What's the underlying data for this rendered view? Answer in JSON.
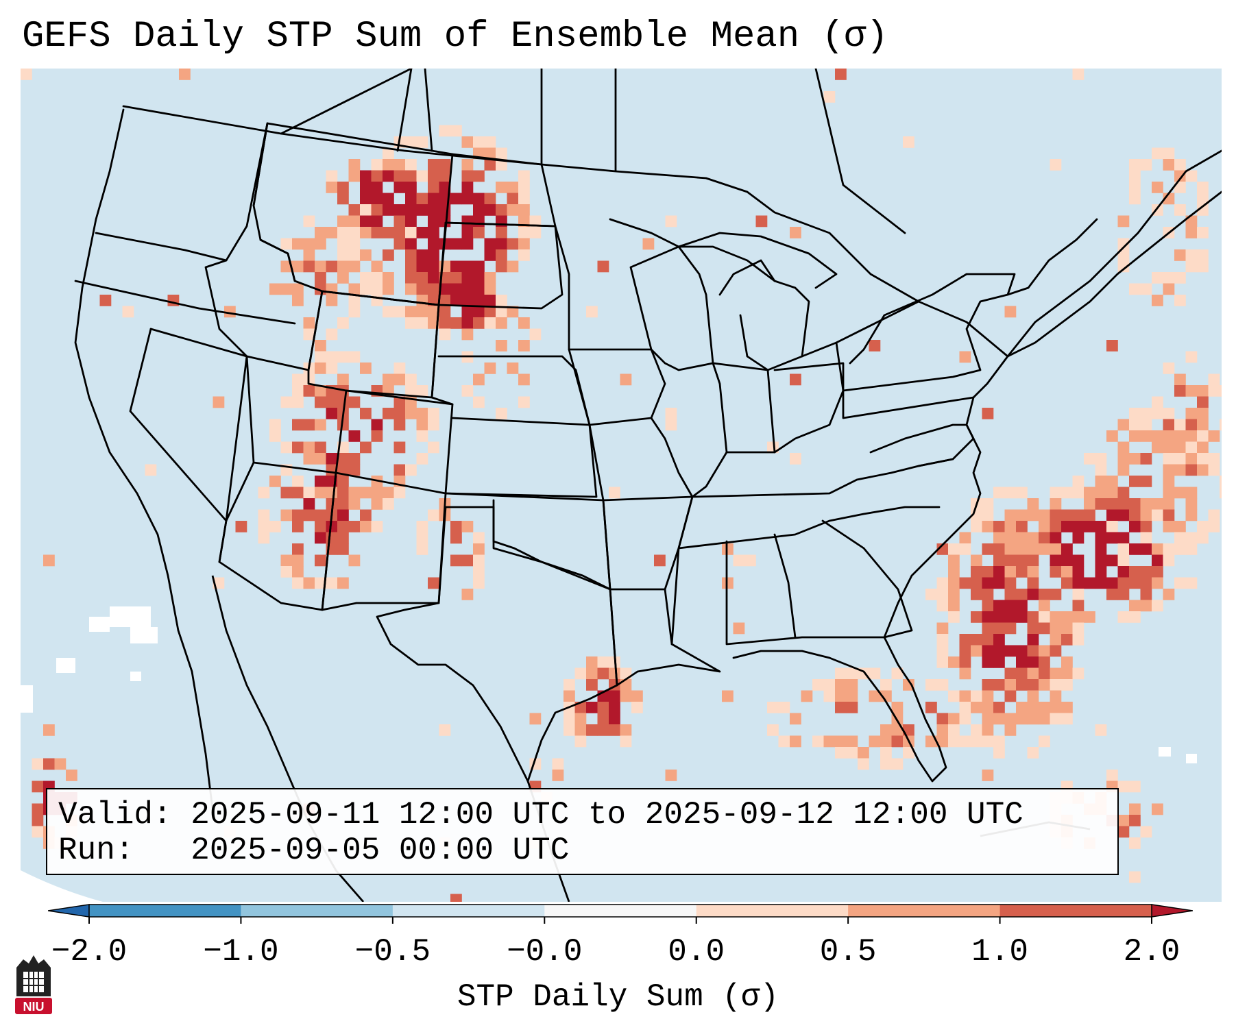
{
  "title": "GEFS Daily STP Sum of Ensemble Mean (σ)",
  "info": {
    "valid_label": "Valid:",
    "valid_value": "2025-09-11 12:00 UTC to 2025-09-12 12:00 UTC",
    "run_label": "Run:",
    "run_value": "2025-09-05 00:00 UTC"
  },
  "colorbar": {
    "label": "STP Daily Sum (σ)",
    "ticks": [
      "−2.0",
      "−1.0",
      "−0.5",
      "−0.0",
      "0.0",
      "0.5",
      "1.0",
      "2.0"
    ],
    "colors": [
      "#4393c3",
      "#92c5de",
      "#d1e5f0",
      "#f7f7f7",
      "#fddbc7",
      "#f4a582",
      "#d6604d"
    ],
    "extend_low_color": "#2166ac",
    "extend_high_color": "#b2182b"
  },
  "map": {
    "background_color": "#d1e5f0",
    "region": "Continental United States",
    "anomaly_regions": [
      {
        "name": "northern-plains-rockies",
        "level": "high"
      },
      {
        "name": "four-corners",
        "level": "moderate"
      },
      {
        "name": "texas-hill-country",
        "level": "moderate"
      },
      {
        "name": "gulf-coast",
        "level": "moderate"
      },
      {
        "name": "southeast-atlantic",
        "level": "high"
      },
      {
        "name": "northeast",
        "level": "low"
      }
    ]
  },
  "logo": {
    "text": "NIU"
  }
}
